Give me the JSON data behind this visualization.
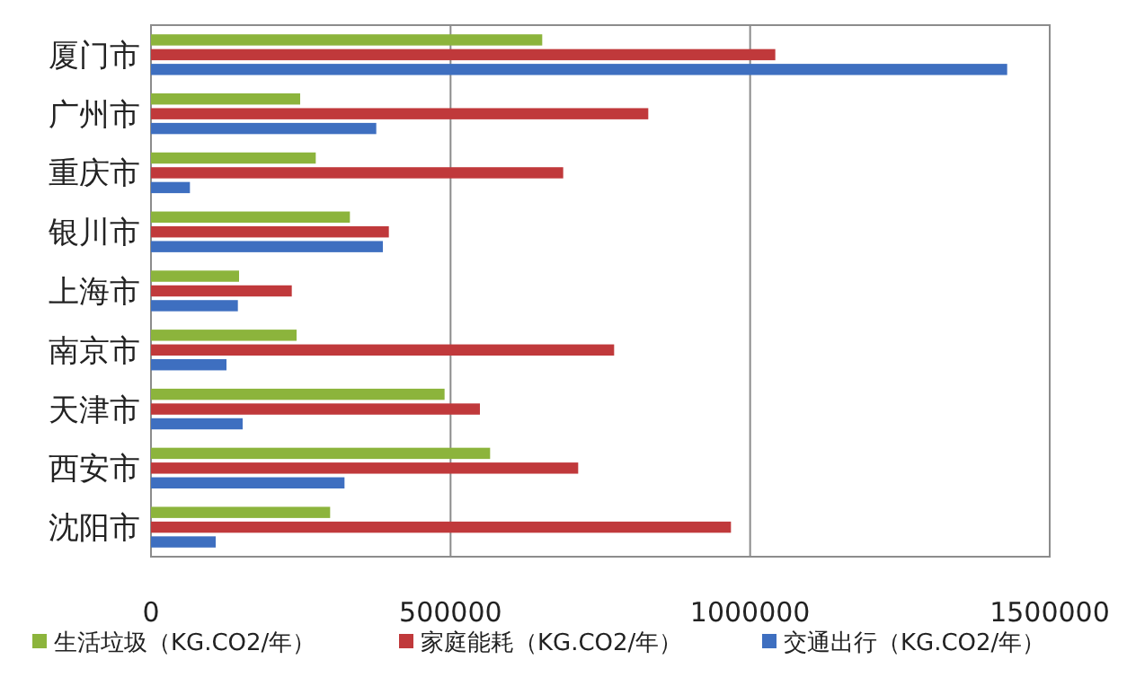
{
  "chart_data": {
    "type": "bar",
    "orientation": "horizontal",
    "categories": [
      "厦门市",
      "广州市",
      "重庆市",
      "银川市",
      "上海市",
      "南京市",
      "天津市",
      "西安市",
      "沈阳市"
    ],
    "series": [
      {
        "name": "生活垃圾（KG.CO2/年）",
        "color": "#8cb43c",
        "values": [
          653000,
          249000,
          275000,
          332000,
          147000,
          243000,
          490000,
          566000,
          299000
        ]
      },
      {
        "name": "家庭能耗（KG.CO2/年）",
        "color": "#c0393b",
        "values": [
          1042000,
          830000,
          688000,
          397000,
          235000,
          773000,
          549000,
          713000,
          968000
        ]
      },
      {
        "name": "交通出行（KG.CO2/年）",
        "color": "#3e6fc0",
        "values": [
          1429000,
          376000,
          65000,
          387000,
          145000,
          126000,
          153000,
          323000,
          108000
        ]
      }
    ],
    "xlim": [
      0,
      1500000
    ],
    "xticks": [
      0,
      500000,
      1000000,
      1500000
    ],
    "grid": "x",
    "legend": "bottom"
  }
}
